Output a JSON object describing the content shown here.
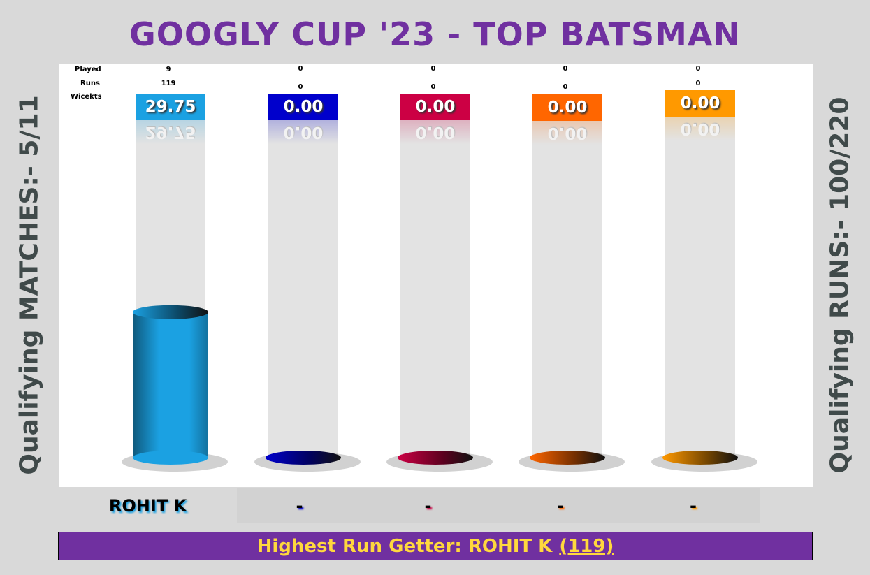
{
  "title": "GOOGLY CUP '23 - TOP BATSMAN",
  "left_label": "Qualifying MATCHES:- 5/11",
  "right_label": "Qualifying RUNS:- 100/220",
  "row_labels": {
    "played": "Played",
    "runs": "Runs",
    "wickets": "Wicekts"
  },
  "highlight": {
    "prefix": "Highest Run Getter: ROHIT K",
    "runs": "(119)"
  },
  "chart_data": {
    "type": "bar",
    "title": "GOOGLY CUP '23 - TOP BATSMAN",
    "categories": [
      "ROHIT K",
      "-",
      "-",
      "-",
      "-"
    ],
    "values": [
      29.75,
      0,
      0,
      0,
      0
    ],
    "value_labels": [
      "29.75",
      "0.00",
      "0.00",
      "0.00",
      "0.00"
    ],
    "played": [
      "9",
      "0",
      "0",
      "0",
      "0"
    ],
    "runs": [
      "119",
      "0",
      "0",
      "0",
      "0"
    ],
    "ylim": [
      0,
      60
    ],
    "colors": [
      "#1ba1e2",
      "#0000cc",
      "#cc0044",
      "#ff6600",
      "#ff9900"
    ],
    "grid": false,
    "legend": "none"
  }
}
